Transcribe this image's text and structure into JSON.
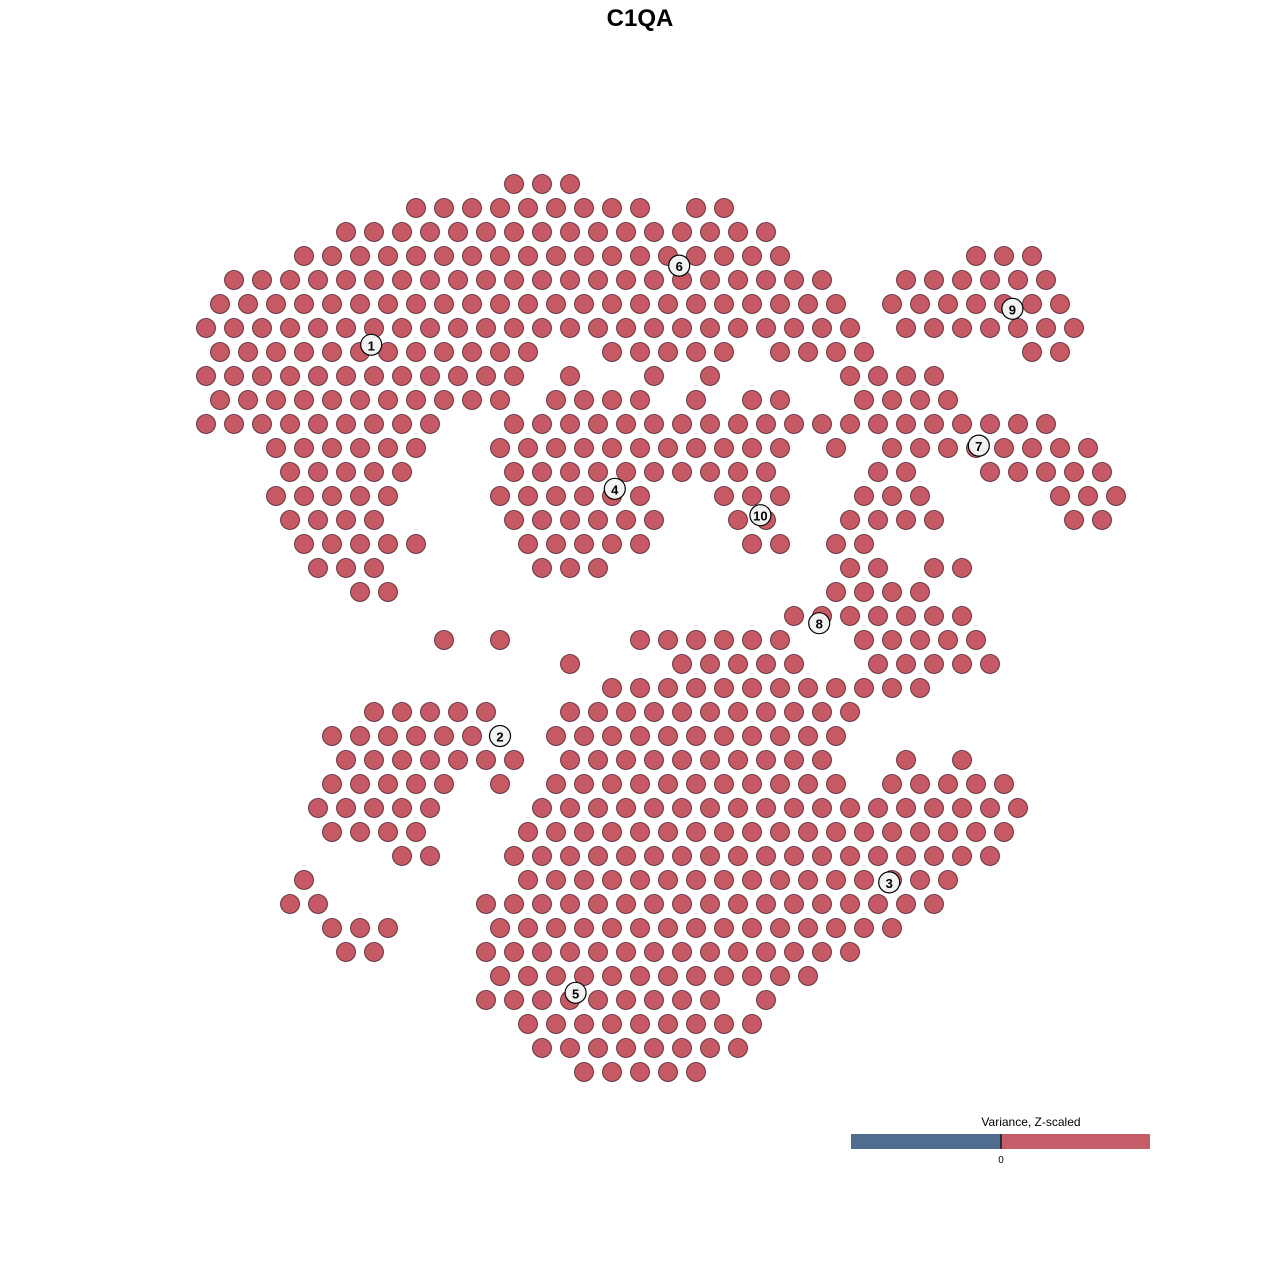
{
  "chart_data": {
    "type": "scatter",
    "title": "C1QA",
    "point_color": "#c55a65",
    "point_outline_color": "#4a2228",
    "legend": {
      "title": "Variance, Z-scaled",
      "low_color": "#506d8f",
      "high_color": "#c55d68",
      "tick_labels": [
        "0"
      ],
      "placement": "bottom-right"
    },
    "axes_visible": false,
    "grid": false,
    "xlim": [
      -16,
      18
    ],
    "ylim": [
      -19,
      20
    ],
    "cluster_labels": [
      {
        "label": "1",
        "x": -9.6,
        "y": 12.3
      },
      {
        "label": "2",
        "x": -5.0,
        "y": -4.0
      },
      {
        "label": "3",
        "x": 8.9,
        "y": -10.1
      },
      {
        "label": "4",
        "x": -0.9,
        "y": 6.3
      },
      {
        "label": "5",
        "x": -2.3,
        "y": -14.7
      },
      {
        "label": "6",
        "x": 1.4,
        "y": 15.6
      },
      {
        "label": "7",
        "x": 12.1,
        "y": 8.1
      },
      {
        "label": "8",
        "x": 6.4,
        "y": 0.7
      },
      {
        "label": "9",
        "x": 13.3,
        "y": 13.8
      },
      {
        "label": "10",
        "x": 4.3,
        "y": 5.2
      }
    ],
    "points_by_row": [
      {
        "y": 19,
        "x": [
          -4.5,
          -3.5,
          -2.5
        ]
      },
      {
        "y": 18,
        "x": [
          -8,
          -7,
          -6,
          -5,
          -4,
          -3,
          -2,
          -1,
          0,
          2,
          3
        ]
      },
      {
        "y": 17,
        "x": [
          -10.5,
          -9.5,
          -8.5,
          -7.5,
          -6.5,
          -5.5,
          -4.5,
          -3.5,
          -2.5,
          -1.5,
          -0.5,
          0.5,
          1.5,
          2.5,
          3.5,
          4.5
        ]
      },
      {
        "y": 16,
        "x": [
          -12,
          -11,
          -10,
          -9,
          -8,
          -7,
          -6,
          -5,
          -4,
          -3,
          -2,
          -1,
          0,
          1,
          2,
          3,
          4,
          5,
          12,
          13,
          14
        ]
      },
      {
        "y": 15,
        "x": [
          -14.5,
          -13.5,
          -12.5,
          -11.5,
          -10.5,
          -9.5,
          -8.5,
          -7.5,
          -6.5,
          -5.5,
          -4.5,
          -3.5,
          -2.5,
          -1.5,
          -0.5,
          0.5,
          1.5,
          2.5,
          3.5,
          4.5,
          5.5,
          6.5,
          9.5,
          10.5,
          11.5,
          12.5,
          13.5,
          14.5
        ]
      },
      {
        "y": 14,
        "x": [
          -15,
          -14,
          -13,
          -12,
          -11,
          -10,
          -9,
          -8,
          -7,
          -6,
          -5,
          -4,
          -3,
          -2,
          -1,
          0,
          1,
          2,
          3,
          4,
          5,
          6,
          7,
          9,
          10,
          11,
          12,
          13,
          14,
          15
        ]
      },
      {
        "y": 13,
        "x": [
          -15.5,
          -14.5,
          -13.5,
          -12.5,
          -11.5,
          -10.5,
          -9.5,
          -8.5,
          -7.5,
          -6.5,
          -5.5,
          -4.5,
          -3.5,
          -2.5,
          -1.5,
          -0.5,
          0.5,
          1.5,
          2.5,
          3.5,
          4.5,
          5.5,
          6.5,
          7.5,
          9.5,
          10.5,
          11.5,
          12.5,
          13.5,
          14.5,
          15.5
        ]
      },
      {
        "y": 12,
        "x": [
          -15,
          -14,
          -13,
          -12,
          -11,
          -10,
          -9,
          -8,
          -7,
          -6,
          -5,
          -4,
          -1,
          0,
          1,
          2,
          3,
          5,
          6,
          7,
          8,
          14,
          15
        ]
      },
      {
        "y": 11,
        "x": [
          -15.5,
          -14.5,
          -13.5,
          -12.5,
          -11.5,
          -10.5,
          -9.5,
          -8.5,
          -7.5,
          -6.5,
          -5.5,
          -4.5,
          -2.5,
          0.5,
          2.5,
          7.5,
          8.5,
          9.5,
          10.5
        ]
      },
      {
        "y": 10,
        "x": [
          -15,
          -14,
          -13,
          -12,
          -11,
          -10,
          -9,
          -8,
          -7,
          -6,
          -5,
          -3,
          -2,
          -1,
          0,
          2,
          4,
          5,
          8,
          9,
          10,
          11
        ]
      },
      {
        "y": 9,
        "x": [
          -15.5,
          -14.5,
          -13.5,
          -12.5,
          -11.5,
          -10.5,
          -9.5,
          -8.5,
          -7.5,
          -4.5,
          -3.5,
          -2.5,
          -1.5,
          -0.5,
          0.5,
          1.5,
          2.5,
          3.5,
          4.5,
          5.5,
          6.5,
          7.5,
          8.5,
          9.5,
          10.5,
          11.5,
          12.5,
          13.5,
          14.5
        ]
      },
      {
        "y": 8,
        "x": [
          -13,
          -12,
          -11,
          -10,
          -9,
          -8,
          -5,
          -4,
          -3,
          -2,
          -1,
          0,
          1,
          2,
          3,
          4,
          5,
          7,
          9,
          10,
          11,
          12,
          13,
          14,
          15,
          16
        ]
      },
      {
        "y": 7,
        "x": [
          -12.5,
          -11.5,
          -10.5,
          -9.5,
          -8.5,
          -4.5,
          -3.5,
          -2.5,
          -1.5,
          -0.5,
          0.5,
          1.5,
          2.5,
          3.5,
          4.5,
          8.5,
          9.5,
          12.5,
          13.5,
          14.5,
          15.5,
          16.5
        ]
      },
      {
        "y": 6,
        "x": [
          -13,
          -12,
          -11,
          -10,
          -9,
          -5,
          -4,
          -3,
          -2,
          -1,
          0,
          3,
          4,
          5,
          8,
          9,
          10,
          15,
          16,
          17
        ]
      },
      {
        "y": 5,
        "x": [
          -12.5,
          -11.5,
          -10.5,
          -9.5,
          -4.5,
          -3.5,
          -2.5,
          -1.5,
          -0.5,
          0.5,
          3.5,
          4.5,
          7.5,
          8.5,
          9.5,
          10.5,
          15.5,
          16.5
        ]
      },
      {
        "y": 4,
        "x": [
          -12,
          -11,
          -10,
          -9,
          -8,
          -4,
          -3,
          -2,
          -1,
          0,
          4,
          5,
          7,
          8
        ]
      },
      {
        "y": 3,
        "x": [
          -11.5,
          -10.5,
          -9.5,
          -3.5,
          -2.5,
          -1.5,
          7.5,
          8.5,
          10.5,
          11.5
        ]
      },
      {
        "y": 2,
        "x": [
          -10,
          -9,
          7,
          8,
          9,
          10
        ]
      },
      {
        "y": 1,
        "x": [
          5.5,
          6.5,
          7.5,
          8.5,
          9.5,
          10.5,
          11.5
        ]
      },
      {
        "y": 0,
        "x": [
          -7,
          -5,
          0,
          1,
          2,
          3,
          4,
          5,
          8,
          9,
          10,
          11,
          12
        ]
      },
      {
        "y": -1,
        "x": [
          -2.5,
          1.5,
          2.5,
          3.5,
          4.5,
          5.5,
          8.5,
          9.5,
          10.5,
          11.5,
          12.5
        ]
      },
      {
        "y": -2,
        "x": [
          -1,
          0,
          1,
          2,
          3,
          4,
          5,
          6,
          7,
          8,
          9,
          10
        ]
      },
      {
        "y": -3,
        "x": [
          -9.5,
          -8.5,
          -7.5,
          -6.5,
          -5.5,
          -2.5,
          -1.5,
          -0.5,
          0.5,
          1.5,
          2.5,
          3.5,
          4.5,
          5.5,
          6.5,
          7.5
        ]
      },
      {
        "y": -4,
        "x": [
          -11,
          -10,
          -9,
          -8,
          -7,
          -6,
          -5,
          -3,
          -2,
          -1,
          0,
          1,
          2,
          3,
          4,
          5,
          6,
          7
        ]
      },
      {
        "y": -5,
        "x": [
          -10.5,
          -9.5,
          -8.5,
          -7.5,
          -6.5,
          -5.5,
          -4.5,
          -2.5,
          -1.5,
          -0.5,
          0.5,
          1.5,
          2.5,
          3.5,
          4.5,
          5.5,
          6.5,
          9.5,
          11.5
        ]
      },
      {
        "y": -6,
        "x": [
          -11,
          -10,
          -9,
          -8,
          -7,
          -5,
          -3,
          -2,
          -1,
          0,
          1,
          2,
          3,
          4,
          5,
          6,
          7,
          9,
          10,
          11,
          12,
          13
        ]
      },
      {
        "y": -7,
        "x": [
          -11.5,
          -10.5,
          -9.5,
          -8.5,
          -7.5,
          -3.5,
          -2.5,
          -1.5,
          -0.5,
          0.5,
          1.5,
          2.5,
          3.5,
          4.5,
          5.5,
          6.5,
          7.5,
          8.5,
          9.5,
          10.5,
          11.5,
          12.5,
          13.5
        ]
      },
      {
        "y": -8,
        "x": [
          -11,
          -10,
          -9,
          -8,
          -4,
          -3,
          -2,
          -1,
          0,
          1,
          2,
          3,
          4,
          5,
          6,
          7,
          8,
          9,
          10,
          11,
          12,
          13
        ]
      },
      {
        "y": -9,
        "x": [
          -8.5,
          -7.5,
          -4.5,
          -3.5,
          -2.5,
          -1.5,
          -0.5,
          0.5,
          1.5,
          2.5,
          3.5,
          4.5,
          5.5,
          6.5,
          7.5,
          8.5,
          9.5,
          10.5,
          11.5,
          12.5
        ]
      },
      {
        "y": -10,
        "x": [
          -12,
          -4,
          -3,
          -2,
          -1,
          0,
          1,
          2,
          3,
          4,
          5,
          6,
          7,
          8,
          9,
          10,
          11
        ]
      },
      {
        "y": -11,
        "x": [
          -12.5,
          -11.5,
          -5.5,
          -4.5,
          -3.5,
          -2.5,
          -1.5,
          -0.5,
          0.5,
          1.5,
          2.5,
          3.5,
          4.5,
          5.5,
          6.5,
          7.5,
          8.5,
          9.5,
          10.5
        ]
      },
      {
        "y": -12,
        "x": [
          -11,
          -10,
          -9,
          -5,
          -4,
          -3,
          -2,
          -1,
          0,
          1,
          2,
          3,
          4,
          5,
          6,
          7,
          8,
          9
        ]
      },
      {
        "y": -13,
        "x": [
          -10.5,
          -9.5,
          -5.5,
          -4.5,
          -3.5,
          -2.5,
          -1.5,
          -0.5,
          0.5,
          1.5,
          2.5,
          3.5,
          4.5,
          5.5,
          6.5,
          7.5
        ]
      },
      {
        "y": -14,
        "x": [
          -5,
          -4,
          -3,
          -2,
          -1,
          0,
          1,
          2,
          3,
          4,
          5,
          6
        ]
      },
      {
        "y": -15,
        "x": [
          -5.5,
          -4.5,
          -3.5,
          -2.5,
          -1.5,
          -0.5,
          0.5,
          1.5,
          2.5,
          4.5
        ]
      },
      {
        "y": -16,
        "x": [
          -4,
          -3,
          -2,
          -1,
          0,
          1,
          2,
          3,
          4
        ]
      },
      {
        "y": -17,
        "x": [
          -3.5,
          -2.5,
          -1.5,
          -0.5,
          0.5,
          1.5,
          2.5,
          3.5
        ]
      },
      {
        "y": -18,
        "x": [
          -2,
          -1,
          0,
          1,
          2
        ]
      }
    ]
  }
}
